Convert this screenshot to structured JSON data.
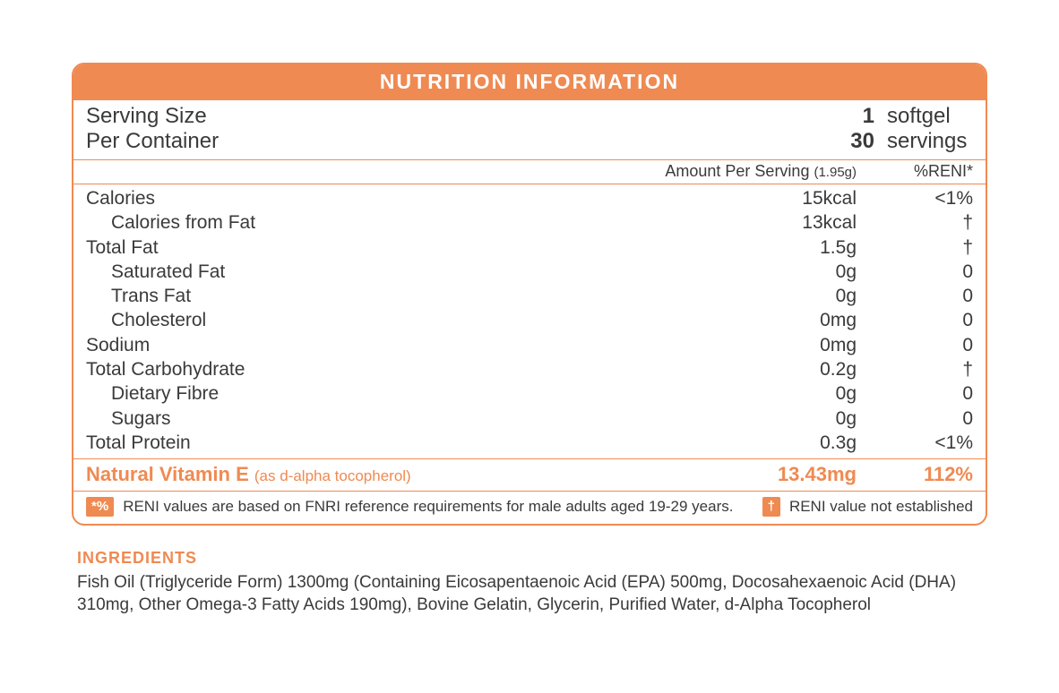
{
  "colors": {
    "accent": "#ef8a52",
    "text": "#3a3a3a",
    "background": "#ffffff"
  },
  "panel": {
    "title": "NUTRITION INFORMATION",
    "serving": [
      {
        "label": "Serving Size",
        "value": "1",
        "unit": "softgel"
      },
      {
        "label": "Per Container",
        "value": "30",
        "unit": "servings"
      }
    ],
    "columns": {
      "amount_label": "Amount Per Serving",
      "amount_note": "(1.95g)",
      "reni_label": "%RENI*"
    },
    "rows": [
      {
        "label": "Calories",
        "amount": "15kcal",
        "reni": "<1%",
        "indent": false
      },
      {
        "label": "Calories from Fat",
        "amount": "13kcal",
        "reni": "†",
        "indent": true
      },
      {
        "label": "Total Fat",
        "amount": "1.5g",
        "reni": "†",
        "indent": false
      },
      {
        "label": "Saturated Fat",
        "amount": "0g",
        "reni": "0",
        "indent": true
      },
      {
        "label": "Trans Fat",
        "amount": "0g",
        "reni": "0",
        "indent": true
      },
      {
        "label": "Cholesterol",
        "amount": "0mg",
        "reni": "0",
        "indent": true
      },
      {
        "label": "Sodium",
        "amount": "0mg",
        "reni": "0",
        "indent": false
      },
      {
        "label": "Total Carbohydrate",
        "amount": "0.2g",
        "reni": "†",
        "indent": false
      },
      {
        "label": "Dietary Fibre",
        "amount": "0g",
        "reni": "0",
        "indent": true
      },
      {
        "label": "Sugars",
        "amount": "0g",
        "reni": "0",
        "indent": true
      },
      {
        "label": "Total Protein",
        "amount": "0.3g",
        "reni": "<1%",
        "indent": false
      }
    ],
    "feature": {
      "label": "Natural Vitamin E",
      "sub": "(as d-alpha tocopherol)",
      "amount": "13.43mg",
      "reni": "112%"
    },
    "footnotes": {
      "badge1": "*%",
      "text1": "RENI values are based on FNRI reference requirements for male adults aged 19-29 years.",
      "badge2": "†",
      "text2": "RENI value not established"
    }
  },
  "ingredients": {
    "heading": "INGREDIENTS",
    "text": "Fish Oil (Triglyceride Form) 1300mg (Containing Eicosapentaenoic Acid (EPA) 500mg, Docosahexaenoic Acid (DHA) 310mg, Other Omega-3 Fatty Acids 190mg), Bovine Gelatin, Glycerin, Purified Water, d-Alpha Tocopherol"
  }
}
